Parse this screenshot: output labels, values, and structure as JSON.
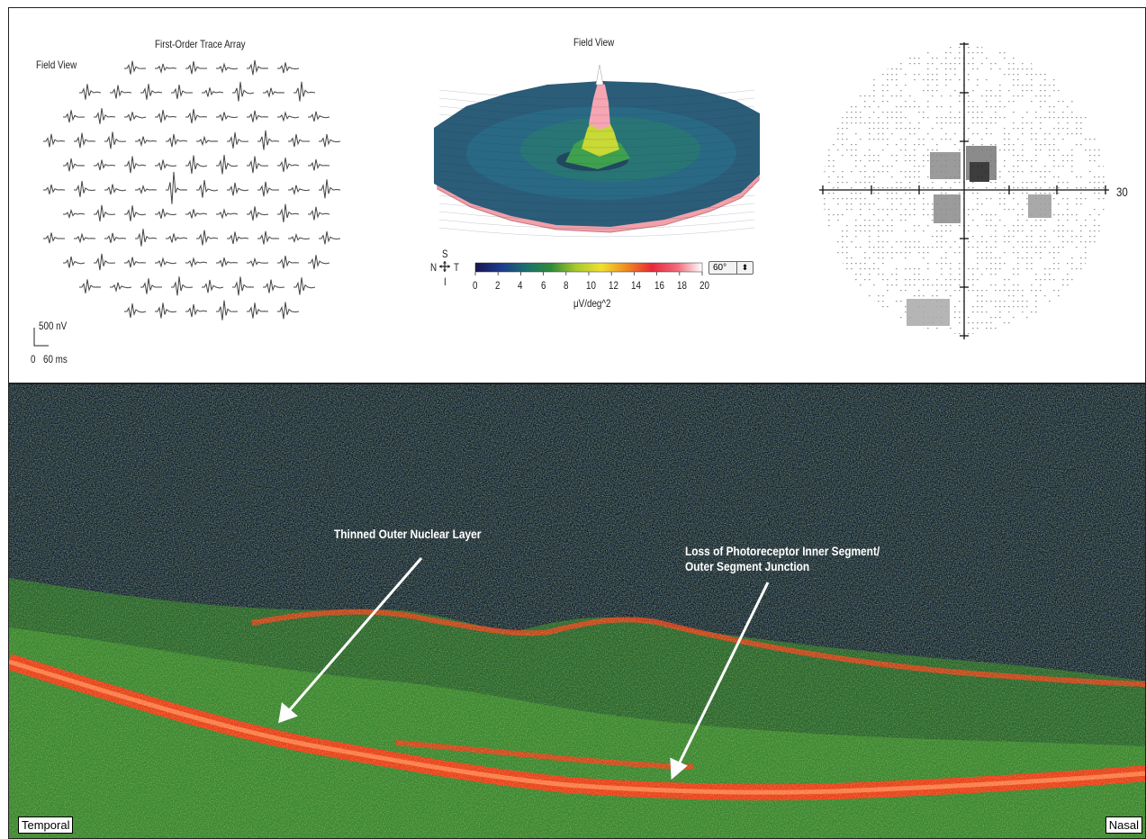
{
  "mferg": {
    "title": "First-Order Trace Array",
    "view_label": "Field View",
    "scale_amplitude": "500 nV",
    "scale_zero": "0",
    "scale_time": "60 ms"
  },
  "topography": {
    "view_label": "Field View",
    "orientation": {
      "s": "S",
      "n": "N",
      "t": "T",
      "i": "I"
    },
    "colorbar_ticks": [
      "0",
      "2",
      "4",
      "6",
      "8",
      "10",
      "12",
      "14",
      "16",
      "18",
      "20"
    ],
    "colorbar_unit": "μV/deg^2",
    "field_select_value": "60°",
    "select_arrows": "⬍"
  },
  "visual_field": {
    "axis_label": "30"
  },
  "oct": {
    "annotation_onl": "Thinned Outer Nuclear Layer",
    "annotation_isos_line1": "Loss of Photoreceptor Inner Segment/",
    "annotation_isos_line2": "Outer Segment Junction",
    "label_temporal": "Temporal",
    "label_nasal": "Nasal"
  },
  "colors": {
    "colorbar": [
      "#1a1450",
      "#1c3a8c",
      "#1c6e6e",
      "#2f8a3a",
      "#a9c92c",
      "#f0e030",
      "#f08a20",
      "#e8283a",
      "#f06a7a",
      "#ffffff"
    ],
    "oct_background": "#0a1220",
    "oct_band": "#e8401e"
  }
}
